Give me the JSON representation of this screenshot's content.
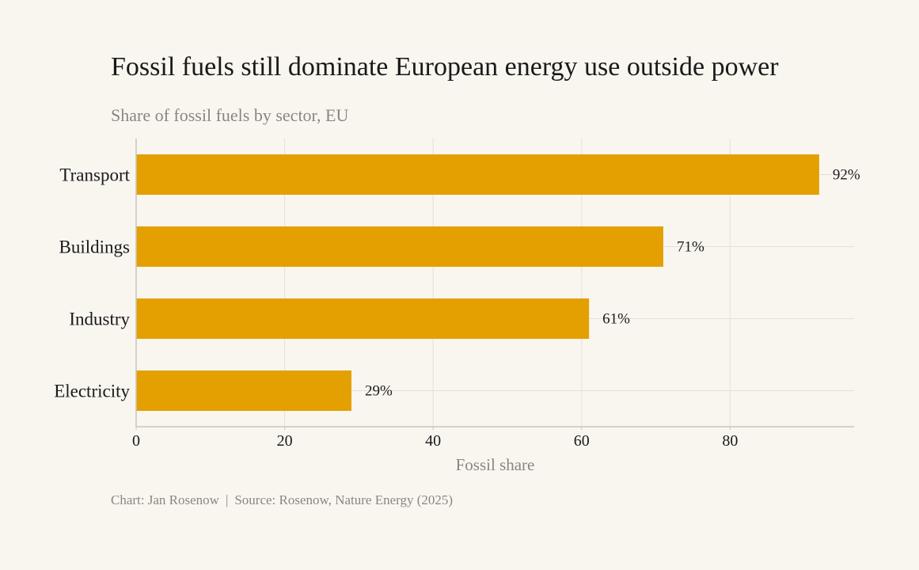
{
  "title": "Fossil fuels still dominate European energy use outside power",
  "subtitle": "Share of fossil fuels by sector, EU",
  "caption": {
    "author": "Chart: Jan Rosenow",
    "separator": "|",
    "source": "Source: Rosenow, Nature Energy (2025)"
  },
  "colors": {
    "bar": "#e3a000",
    "background": "#f9f6f0",
    "grid": "#e4e0d9",
    "axis": "#c9c4bc",
    "muted_text": "#8a8580"
  },
  "chart_data": {
    "type": "bar",
    "orientation": "horizontal",
    "categories": [
      "Transport",
      "Buildings",
      "Industry",
      "Electricity"
    ],
    "values": [
      92,
      71,
      61,
      29
    ],
    "data_labels": [
      "92%",
      "71%",
      "61%",
      "29%"
    ],
    "xlabel": "Fossil share",
    "ylabel": "",
    "xlim": [
      0,
      96.7
    ],
    "xticks": [
      0,
      20,
      40,
      60,
      80
    ],
    "grid": true,
    "legend": "none"
  }
}
